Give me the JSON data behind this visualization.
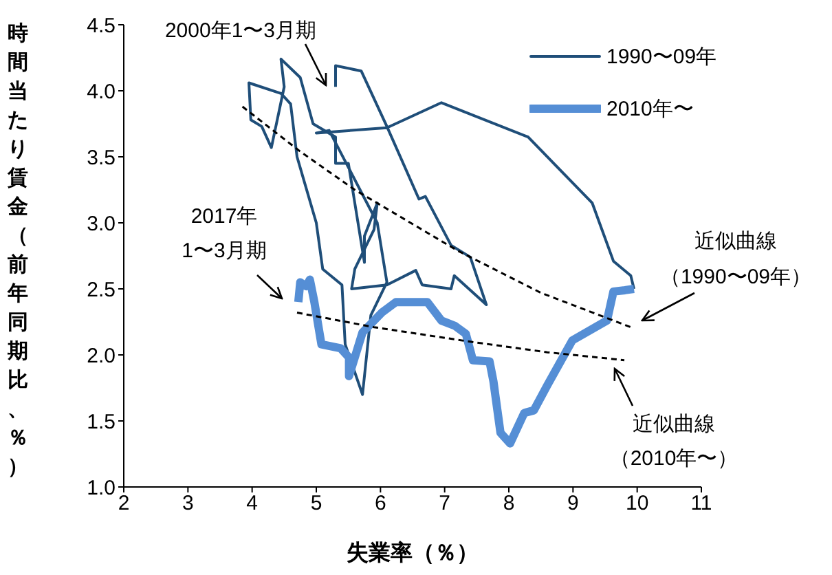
{
  "chart_data": {
    "type": "line",
    "xlabel": "失業率（％）",
    "ylabel": "時間当たり賃金（前年同期比、％）",
    "xlim": [
      2,
      11
    ],
    "xticks": [
      2,
      3,
      4,
      5,
      6,
      7,
      8,
      9,
      10,
      11
    ],
    "ylim": [
      1,
      4.5
    ],
    "yticks": [
      {
        "value": 1,
        "label": "1.0"
      },
      1.5,
      {
        "value": 2,
        "label": "2.0"
      },
      2.5,
      {
        "value": 3,
        "label": "3.0"
      },
      3.5,
      {
        "value": 4,
        "label": "4.0"
      },
      4.5
    ],
    "grid": false,
    "legend": "top right",
    "marker": "none",
    "series": [
      {
        "name": "1990〜09年",
        "color": "#1f4e79",
        "x": [
          5.3,
          5.3,
          5.7,
          6.1,
          6.6,
          6.7,
          7.1,
          7.4,
          7.65,
          7.15,
          7.1,
          6.65,
          6.55,
          6.1,
          5.55,
          5.6,
          5.9,
          5.95,
          5.75,
          5.75,
          5.5,
          5.3,
          5.3,
          4.95,
          4.75,
          4.45,
          4.5,
          4.3,
          4.15,
          3.98,
          3.95,
          4.45,
          4.6,
          4.7,
          5.0,
          5.1,
          5.4,
          5.45,
          5.72,
          5.85,
          6.1,
          5.95,
          5.2,
          5.0,
          6.1,
          6.95,
          8.3,
          9.3,
          9.63,
          9.9,
          9.95
        ],
        "values": [
          4.03,
          4.19,
          4.15,
          3.73,
          3.18,
          3.2,
          2.83,
          2.74,
          2.38,
          2.6,
          2.5,
          2.53,
          2.64,
          2.53,
          2.5,
          2.65,
          2.95,
          3.15,
          2.9,
          2.7,
          3.45,
          3.45,
          3.65,
          3.75,
          4.1,
          4.24,
          4.03,
          3.57,
          3.73,
          3.78,
          4.06,
          3.98,
          3.9,
          3.5,
          3.0,
          2.65,
          2.53,
          2.08,
          1.7,
          2.3,
          2.55,
          3.0,
          3.7,
          3.68,
          3.72,
          3.91,
          3.65,
          3.15,
          2.71,
          2.6,
          2.5
        ]
      },
      {
        "name": "2010年〜",
        "color": "#558ed5",
        "x": [
          9.95,
          9.81,
          9.63,
          9.53,
          8.99,
          8.6,
          8.39,
          8.24,
          8.02,
          7.87,
          7.76,
          7.7,
          7.44,
          7.33,
          7.16,
          6.95,
          6.73,
          6.24,
          6.02,
          5.72,
          5.51,
          5.51,
          5.38,
          5.08,
          4.97,
          4.9,
          4.84,
          4.75,
          4.72
        ],
        "values": [
          2.5,
          2.49,
          2.48,
          2.26,
          2.11,
          1.77,
          1.58,
          1.56,
          1.33,
          1.41,
          1.8,
          1.95,
          1.96,
          2.16,
          2.22,
          2.26,
          2.4,
          2.4,
          2.32,
          2.17,
          1.84,
          1.98,
          2.05,
          2.08,
          2.4,
          2.57,
          2.52,
          2.55,
          2.4
        ]
      },
      {
        "color": "#000000",
        "line_style": "dashed",
        "x": [
          3.85,
          4.75,
          5.6,
          7.2,
          8.5,
          9.9
        ],
        "values": [
          3.88,
          3.54,
          3.25,
          2.79,
          2.47,
          2.21
        ]
      },
      {
        "color": "#000000",
        "line_style": "dashed",
        "x": [
          4.7,
          5.9,
          7.4,
          8.6,
          9.8
        ],
        "values": [
          2.32,
          2.21,
          2.1,
          2.02,
          1.96
        ]
      }
    ],
    "annotations": [
      "2000年1〜3月期",
      "2017年",
      "1〜3月期",
      "近似曲線",
      "（1990〜09年）",
      "近似曲線",
      "（2010年〜）"
    ]
  }
}
